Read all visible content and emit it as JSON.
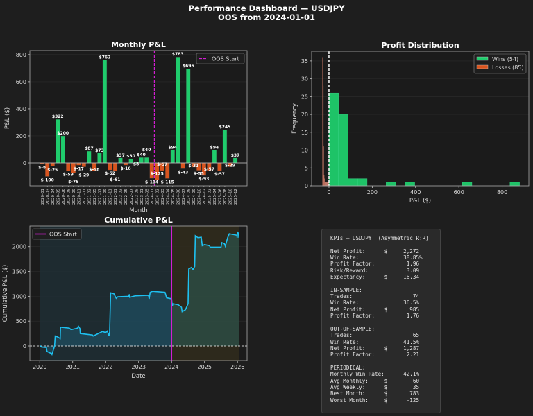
{
  "figure": {
    "title": "Performance Dashboard — USDJPY",
    "subtitle": "OOS from 2024-01-01"
  },
  "colors": {
    "win": "#1fcc6c",
    "loss": "#d9541e",
    "line": "#1ec0f0",
    "oos": "#d21ed2",
    "bg": "#1e1e1e"
  },
  "chart_data": [
    {
      "type": "bar",
      "title": "Monthly P&L",
      "xlabel": "Month",
      "ylabel": "P&L ($)",
      "ylim": [
        -169,
        830
      ],
      "yticks": [
        0,
        200,
        400,
        600,
        800
      ],
      "legend": {
        "label": "OOS Start",
        "placement": "top-right"
      },
      "oos_index": 21.5,
      "categories": [
        "2020-01",
        "2020-03",
        "2020-04",
        "2020-05",
        "2020-06",
        "2020-08",
        "2020-09",
        "2020-11",
        "2021-01",
        "2021-03",
        "2021-05",
        "2021-07",
        "2021-09",
        "2021-11",
        "2022-01",
        "2022-03",
        "2022-05",
        "2022-07",
        "2022-09",
        "2023-01",
        "2023-05",
        "2024-01",
        "2024-02",
        "2024-03",
        "2024-04",
        "2024-05",
        "2024-06",
        "2024-07",
        "2024-08",
        "2024-09",
        "2024-10",
        "2024-12",
        "2025-02",
        "2025-04",
        "2025-06",
        "2025-08",
        "2025-10",
        "2025-12"
      ],
      "values": [
        -8,
        -100,
        -25,
        322,
        200,
        -59,
        -76,
        -17,
        -29,
        87,
        -58,
        73,
        762,
        -52,
        -61,
        37,
        -16,
        30,
        8,
        40,
        40,
        -114,
        -125,
        -57,
        -115,
        94,
        783,
        -43,
        696,
        -31,
        -55,
        -93,
        -57,
        94,
        -57,
        245,
        -29,
        37
      ]
    },
    {
      "type": "bar",
      "title": "Profit Distribution",
      "xlabel": "P&L ($)",
      "ylabel": "Frequency",
      "xlim": [
        -80,
        923
      ],
      "ylim": [
        0,
        37.7
      ],
      "xticks": [
        0,
        200,
        400,
        600,
        800
      ],
      "yticks": [
        0,
        5,
        10,
        15,
        20,
        25,
        30,
        35
      ],
      "legend_placement": "top-right",
      "series": [
        {
          "name": "Wins (54)",
          "bins": [
            [
              0,
              44,
              26
            ],
            [
              44,
              88,
              20
            ],
            [
              88,
              132,
              2
            ],
            [
              132,
              176,
              2
            ],
            [
              264,
              308,
              1
            ],
            [
              352,
              396,
              1
            ],
            [
              616,
              660,
              1
            ],
            [
              836,
              880,
              1
            ]
          ]
        },
        {
          "name": "Losses (85)",
          "bins": [
            [
              -30,
              -28,
              36
            ],
            [
              -28,
              -26,
              28
            ],
            [
              -26,
              -24,
              11
            ],
            [
              -24,
              -22,
              3
            ],
            [
              -22,
              -20,
              2
            ],
            [
              -20,
              -17,
              1
            ],
            [
              -17,
              -13,
              1
            ],
            [
              -13,
              -9,
              1
            ],
            [
              -9,
              -5,
              1
            ],
            [
              -5,
              -1,
              1
            ]
          ]
        }
      ]
    },
    {
      "type": "line",
      "title": "Cumulative P&L",
      "xlabel": "Date",
      "ylabel": "Cumulative P&L ($)",
      "xlim": [
        2019.7,
        2026.29
      ],
      "ylim": [
        -293,
        2415
      ],
      "xticks": [
        2020,
        2021,
        2022,
        2023,
        2024,
        2025,
        2026
      ],
      "yticks": [
        0,
        500,
        1000,
        1500,
        2000
      ],
      "legend": {
        "label": "OOS Start",
        "placement": "top-left"
      },
      "oos_x": 2024.0,
      "x": [
        2020.0,
        2020.05,
        2020.2,
        2020.22,
        2020.35,
        2020.37,
        2020.45,
        2020.47,
        2020.55,
        2020.62,
        2020.63,
        2020.9,
        2020.95,
        2021.15,
        2021.17,
        2021.22,
        2021.23,
        2021.6,
        2021.62,
        2021.9,
        2022.0,
        2022.05,
        2022.1,
        2022.12,
        2022.15,
        2022.25,
        2022.32,
        2022.37,
        2022.7,
        2022.72,
        2022.73,
        2022.9,
        2023.3,
        2023.32,
        2023.35,
        2023.42,
        2023.8,
        2023.85,
        2024.0,
        2024.02,
        2024.04,
        2024.2,
        2024.3,
        2024.32,
        2024.42,
        2024.5,
        2024.52,
        2024.6,
        2024.65,
        2024.7,
        2024.72,
        2024.8,
        2024.9,
        2024.93,
        2025.0,
        2025.15,
        2025.17,
        2025.5,
        2025.52,
        2025.6,
        2025.63,
        2025.7,
        2025.75,
        2025.98,
        2025.99,
        2026.0,
        2026.03,
        2026.04
      ],
      "y": [
        10,
        -20,
        -30,
        -110,
        -150,
        -170,
        0,
        200,
        180,
        150,
        380,
        360,
        330,
        360,
        400,
        350,
        250,
        220,
        200,
        290,
        270,
        300,
        200,
        280,
        1070,
        1050,
        960,
        990,
        1000,
        1040,
        980,
        1010,
        1020,
        950,
        1080,
        1100,
        1080,
        970,
        950,
        800,
        850,
        830,
        780,
        690,
        730,
        850,
        1550,
        1580,
        1540,
        1600,
        2220,
        2180,
        2190,
        2020,
        2040,
        2020,
        1990,
        1990,
        2080,
        2060,
        2010,
        2180,
        2260,
        2230,
        2180,
        2290,
        2270,
        2180
      ]
    }
  ],
  "kpi_lines": [
    "KPIs — USDJPY  (Asymmetric R:R)",
    "",
    "Net Profit:      $     2,272",
    "Win Rate:              38.85%",
    "Profit Factor:          1.96",
    "Risk/Reward:            3.09",
    "Expectancy:      $     16.34",
    "",
    "IN-SAMPLE:",
    "Trades:                   74",
    "Win Rate:              36.5%",
    "Net Profit:      $       985",
    "Profit Factor:          1.76",
    "",
    "OUT-OF-SAMPLE:",
    "Trades:                   65",
    "Win Rate:              41.5%",
    "Net Profit:      $     1,287",
    "Profit Factor:          2.21",
    "",
    "PERIODICAL:",
    "Monthly Win Rate:      42.1%",
    "Avg Monthly:     $        60",
    "Avg Weekly:      $        35",
    "Best Month:      $       783",
    "Worst Month:     $      -125"
  ]
}
